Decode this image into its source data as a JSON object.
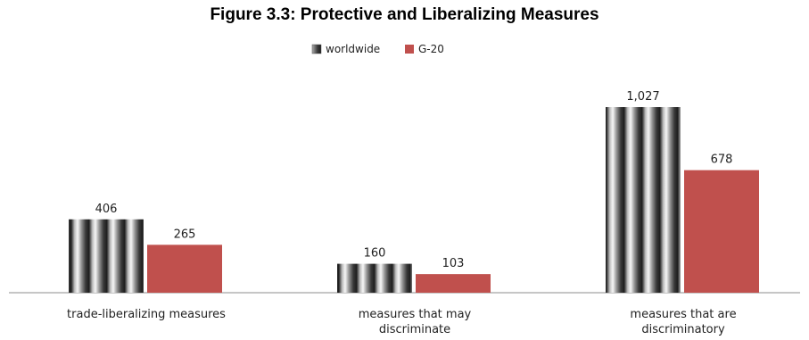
{
  "chart_data": {
    "type": "bar",
    "title": "Figure 3.3: Protective and Liberalizing Measures",
    "categories": [
      [
        "trade-liberalizing measures"
      ],
      [
        "measures that  may",
        "discriminate"
      ],
      [
        "measures that  are",
        "discriminatory"
      ]
    ],
    "series": [
      {
        "name": "worldwide",
        "values": [
          406,
          160,
          1027
        ],
        "labels": [
          "406",
          "160",
          "1,027"
        ],
        "style": "striped-gray"
      },
      {
        "name": "G-20",
        "values": [
          265,
          103,
          678
        ],
        "labels": [
          "265",
          "103",
          "678"
        ],
        "color": "#c0504d"
      }
    ],
    "ylim": [
      0,
      1100
    ],
    "grid": false,
    "legend": "top-center"
  }
}
